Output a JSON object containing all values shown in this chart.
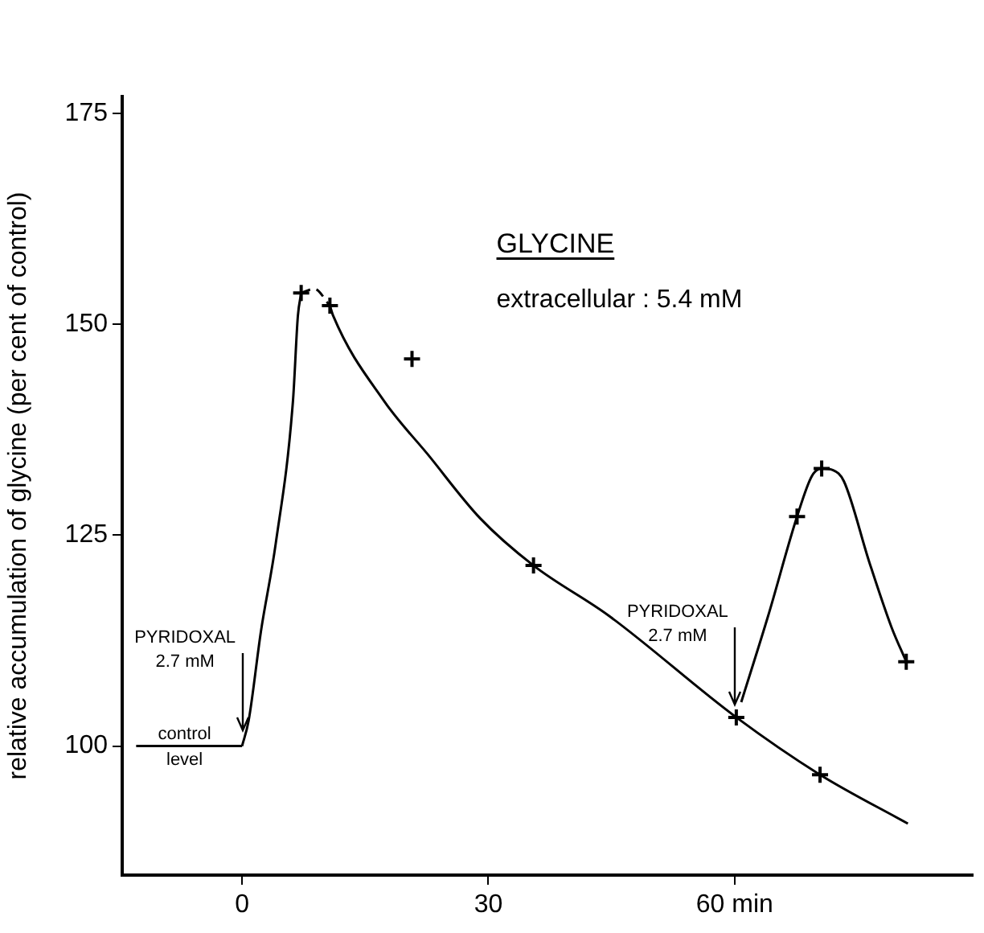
{
  "chart_data": {
    "type": "line",
    "ylabel": "relative accumulation of glycine (per cent of control)",
    "xlim": [
      -14.6,
      89
    ],
    "xticks": [
      0,
      30,
      {
        "value": 60,
        "label": "60 min"
      }
    ],
    "ylim": [
      84.7,
      177
    ],
    "yticks": [
      100,
      125,
      150,
      175
    ],
    "grid": false,
    "legend": false,
    "annotations": [
      "GLYCINE",
      "extracellular : 5.4 mM",
      {
        "text": "PYRIDOXAL\n2.7 mM",
        "x": 0,
        "y": 101.5
      },
      {
        "text": "PYRIDOXAL\n2.7 mM",
        "x": 60,
        "y": 104.5
      },
      {
        "text": "control\nlevel",
        "x": -7,
        "y": 100
      }
    ],
    "series": [
      {
        "type": "scatter",
        "marker": "cross",
        "color": "#000000",
        "x": [
          7.2,
          10.7,
          20.7,
          35.5,
          60.2,
          70.4,
          67.6,
          70.6,
          80.9
        ],
        "values": [
          153.7,
          152.2,
          145.9,
          121.4,
          103.4,
          96.6,
          127.2,
          132.9,
          110
        ]
      },
      {
        "marker": "none",
        "line_style": "solid",
        "color": "#000000",
        "x": [
          -12.9,
          0
        ],
        "values": [
          100,
          100
        ]
      },
      {
        "marker": "none",
        "line_style": "solid",
        "color": "#000000",
        "x": [
          0,
          0.8,
          2.3,
          4.1,
          6.2,
          6.8,
          7.2
        ],
        "values": [
          100,
          103,
          113.6,
          124,
          140.9,
          151,
          153.7
        ]
      },
      {
        "marker": "none",
        "line_style": "dashed",
        "color": "#000000",
        "x": [
          7.2,
          8.8,
          10.7
        ],
        "values": [
          153.7,
          154.2,
          152.2
        ]
      },
      {
        "marker": "none",
        "line_style": "solid",
        "color": "#000000",
        "x": [
          10.7,
          11.1,
          17.3,
          22.6,
          29,
          35.5,
          44.6,
          60.2,
          70.4,
          81.1
        ],
        "values": [
          152.2,
          151,
          140.9,
          134.6,
          127,
          121.4,
          115.5,
          103.4,
          96.6,
          90.8
        ]
      },
      {
        "marker": "none",
        "line_style": "solid",
        "color": "#000000",
        "x": [
          60.8,
          64.1,
          67.6,
          69.4,
          70.6,
          72,
          73.3,
          76.4,
          79.1,
          80.9
        ],
        "values": [
          105.2,
          115.5,
          127.2,
          132,
          132.9,
          132.7,
          131.4,
          121.8,
          114.1,
          110
        ]
      }
    ]
  }
}
